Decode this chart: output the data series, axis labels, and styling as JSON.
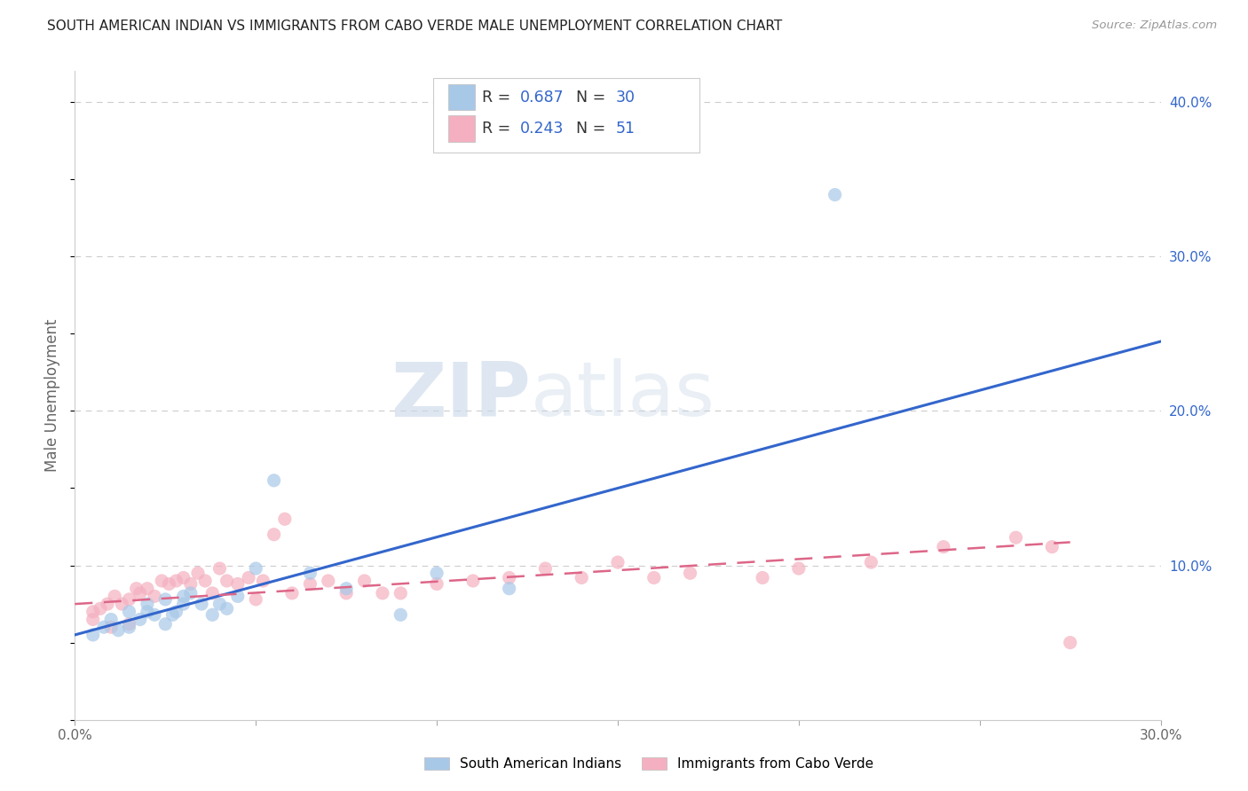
{
  "title": "SOUTH AMERICAN INDIAN VS IMMIGRANTS FROM CABO VERDE MALE UNEMPLOYMENT CORRELATION CHART",
  "source": "Source: ZipAtlas.com",
  "ylabel": "Male Unemployment",
  "xlim": [
    0.0,
    0.3
  ],
  "ylim": [
    0.0,
    0.42
  ],
  "blue_scatter_x": [
    0.005,
    0.008,
    0.01,
    0.012,
    0.015,
    0.015,
    0.018,
    0.02,
    0.02,
    0.022,
    0.025,
    0.025,
    0.027,
    0.028,
    0.03,
    0.03,
    0.032,
    0.035,
    0.038,
    0.04,
    0.042,
    0.045,
    0.05,
    0.055,
    0.065,
    0.075,
    0.09,
    0.1,
    0.12,
    0.21
  ],
  "blue_scatter_y": [
    0.055,
    0.06,
    0.065,
    0.058,
    0.06,
    0.07,
    0.065,
    0.07,
    0.075,
    0.068,
    0.062,
    0.078,
    0.068,
    0.07,
    0.075,
    0.08,
    0.082,
    0.075,
    0.068,
    0.075,
    0.072,
    0.08,
    0.098,
    0.155,
    0.095,
    0.085,
    0.068,
    0.095,
    0.085,
    0.34
  ],
  "pink_scatter_x": [
    0.005,
    0.007,
    0.009,
    0.011,
    0.013,
    0.015,
    0.017,
    0.018,
    0.02,
    0.022,
    0.024,
    0.026,
    0.028,
    0.03,
    0.032,
    0.034,
    0.036,
    0.038,
    0.04,
    0.042,
    0.045,
    0.048,
    0.05,
    0.052,
    0.055,
    0.058,
    0.06,
    0.065,
    0.07,
    0.075,
    0.08,
    0.085,
    0.09,
    0.1,
    0.11,
    0.12,
    0.13,
    0.14,
    0.15,
    0.16,
    0.17,
    0.19,
    0.2,
    0.22,
    0.24,
    0.26,
    0.27,
    0.275,
    0.005,
    0.01,
    0.015
  ],
  "pink_scatter_y": [
    0.065,
    0.072,
    0.075,
    0.08,
    0.075,
    0.078,
    0.085,
    0.082,
    0.085,
    0.08,
    0.09,
    0.088,
    0.09,
    0.092,
    0.088,
    0.095,
    0.09,
    0.082,
    0.098,
    0.09,
    0.088,
    0.092,
    0.078,
    0.09,
    0.12,
    0.13,
    0.082,
    0.088,
    0.09,
    0.082,
    0.09,
    0.082,
    0.082,
    0.088,
    0.09,
    0.092,
    0.098,
    0.092,
    0.102,
    0.092,
    0.095,
    0.092,
    0.098,
    0.102,
    0.112,
    0.118,
    0.112,
    0.05,
    0.07,
    0.06,
    0.062
  ],
  "blue_line_x": [
    0.0,
    0.3
  ],
  "blue_line_y": [
    0.055,
    0.245
  ],
  "pink_line_x": [
    0.0,
    0.275
  ],
  "pink_line_y": [
    0.075,
    0.115
  ],
  "blue_color": "#a8c8e8",
  "pink_color": "#f4b0c0",
  "blue_line_color": "#3366cc",
  "pink_line_color": "#dd6688",
  "legend_text_color": "#3366cc",
  "legend_R_blue": "R = 0.687",
  "legend_N_blue": "N = 30",
  "legend_R_pink": "R = 0.243",
  "legend_N_pink": "N = 51",
  "watermark_zip": "ZIP",
  "watermark_atlas": "atlas",
  "background_color": "#ffffff",
  "grid_color": "#cccccc",
  "right_tick_color": "#3366cc"
}
